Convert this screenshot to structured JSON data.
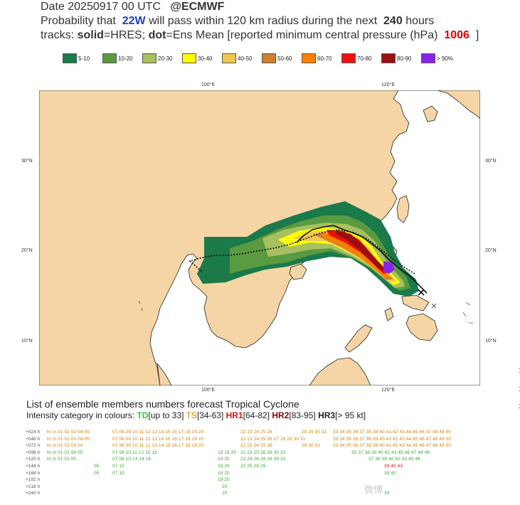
{
  "header": {
    "date_text": "Date 20250917 00 UTC",
    "source": "@ECMWF",
    "prob_prefix": "Probability that",
    "storm_id": "22W",
    "prob_mid": "will pass within 120 km radius during the next",
    "hours": "240",
    "hours_suffix": "hours",
    "tracks_prefix": "tracks:",
    "solid_word": "solid",
    "solid_eq": "=HRES;",
    "dot_word": "dot",
    "dot_eq": "=Ens Mean [reported minimum central pressure (hPa)",
    "pressure": "1006",
    "close_bracket": "]"
  },
  "legend": [
    {
      "label": "5-10",
      "color": "#1a7a4a"
    },
    {
      "label": "10-20",
      "color": "#5a9a40"
    },
    {
      "label": "20-30",
      "color": "#a8c060"
    },
    {
      "label": "30-40",
      "color": "#ffff00"
    },
    {
      "label": "40-50",
      "color": "#f0c850"
    },
    {
      "label": "50-60",
      "color": "#d08030"
    },
    {
      "label": "60-70",
      "color": "#ff8000"
    },
    {
      "label": "70-80",
      "color": "#ee1111"
    },
    {
      "label": "80-90",
      "color": "#9a1010"
    },
    {
      "label": "> 90%",
      "color": "#8a22ee"
    }
  ],
  "map": {
    "lon_labels_top": [
      "100°E",
      "120°E"
    ],
    "lon_labels_bottom": [
      "100°E",
      "120°E"
    ],
    "lat_labels": [
      "30°N",
      "20°N",
      "10°N"
    ],
    "colors": {
      "land": "#f5d5a5",
      "sea": "#ffffff",
      "border": "#222222"
    }
  },
  "ensemble": {
    "title": "List of ensemble members numbers forecast Tropical Cyclone",
    "intensity_prefix": "Intensity category in colours:",
    "td": "TD",
    "td_range": "[up to 33]",
    "ts": "TS",
    "ts_range": "[34-63]",
    "hr1": "HR1",
    "hr1_range": "[64-82]",
    "hr2": "HR2",
    "hr2_range": "[83-95]",
    "hr3": "HR3",
    "hr3_range": "[> 95 kt]",
    "rows": [
      {
        "lead": "+024 h",
        "segs": [
          "hr ct 01 02 03 04 05",
          "07 08 09 10 11 12 13 14 15 16 17 18 19 20",
          "22 23 24 25 26",
          "28 29 30 31",
          "33 34 35 36 37 38 39 40 41 42 43 44 45 46 47 48 49 50"
        ]
      },
      {
        "lead": "+048 h",
        "segs": [
          "hr ct 01 02 03 04 05",
          "07 08 09 10 11 12 13 14 15 16 17 18 19 20",
          "22 23 24 25 26 27 28 29 30 31",
          "",
          "33 34 35 36 37 38 39 40 41 42 43 44 45 46 47 48 49 50"
        ]
      },
      {
        "lead": "+072 h",
        "segs": [
          "hr ct 01 02 03 04",
          "07 08 09 10 11 12 13 14 15 16 17 18 19 20",
          "22 23 24 25 26",
          "29 30 31",
          "33 34 35 36 37 38 39 40 41 42 43 44 45 46 47 48 49 50"
        ]
      },
      {
        "lead": "+096 h",
        "segs": [
          "hr ct 01 02 04 05",
          "07 08 10 11 12 15 16",
          "18 19 20",
          "22 23 25 26 28 30 31",
          "35 37 38 39 40 42 43 45 46 47 48 49"
        ]
      },
      {
        "lead": "+120 h",
        "segs": [
          "hr ct 01 02 05",
          "07 08 10 13 14 16",
          "19 20",
          "22 24 26 28 29 30 31",
          "37 38 39 40 42 43 45 46"
        ]
      },
      {
        "lead": "+144 h",
        "segs": [
          "05",
          "07 10",
          "19 20",
          "22 25 28 29",
          "39 40 43"
        ]
      },
      {
        "lead": "+168 h",
        "segs": [
          "05",
          "07 10",
          "19 20",
          "",
          "39 40"
        ]
      },
      {
        "lead": "+192 h",
        "segs": [
          "",
          "",
          "19 20",
          "",
          ""
        ]
      },
      {
        "lead": "+216 h",
        "segs": [
          "",
          "",
          "20",
          "",
          ""
        ]
      },
      {
        "lead": "+240 h",
        "segs": [
          "",
          "",
          "20",
          "",
          "39"
        ]
      }
    ]
  },
  "watermark": "微博",
  "edge_marks": [
    "1",
    "1",
    "1"
  ]
}
